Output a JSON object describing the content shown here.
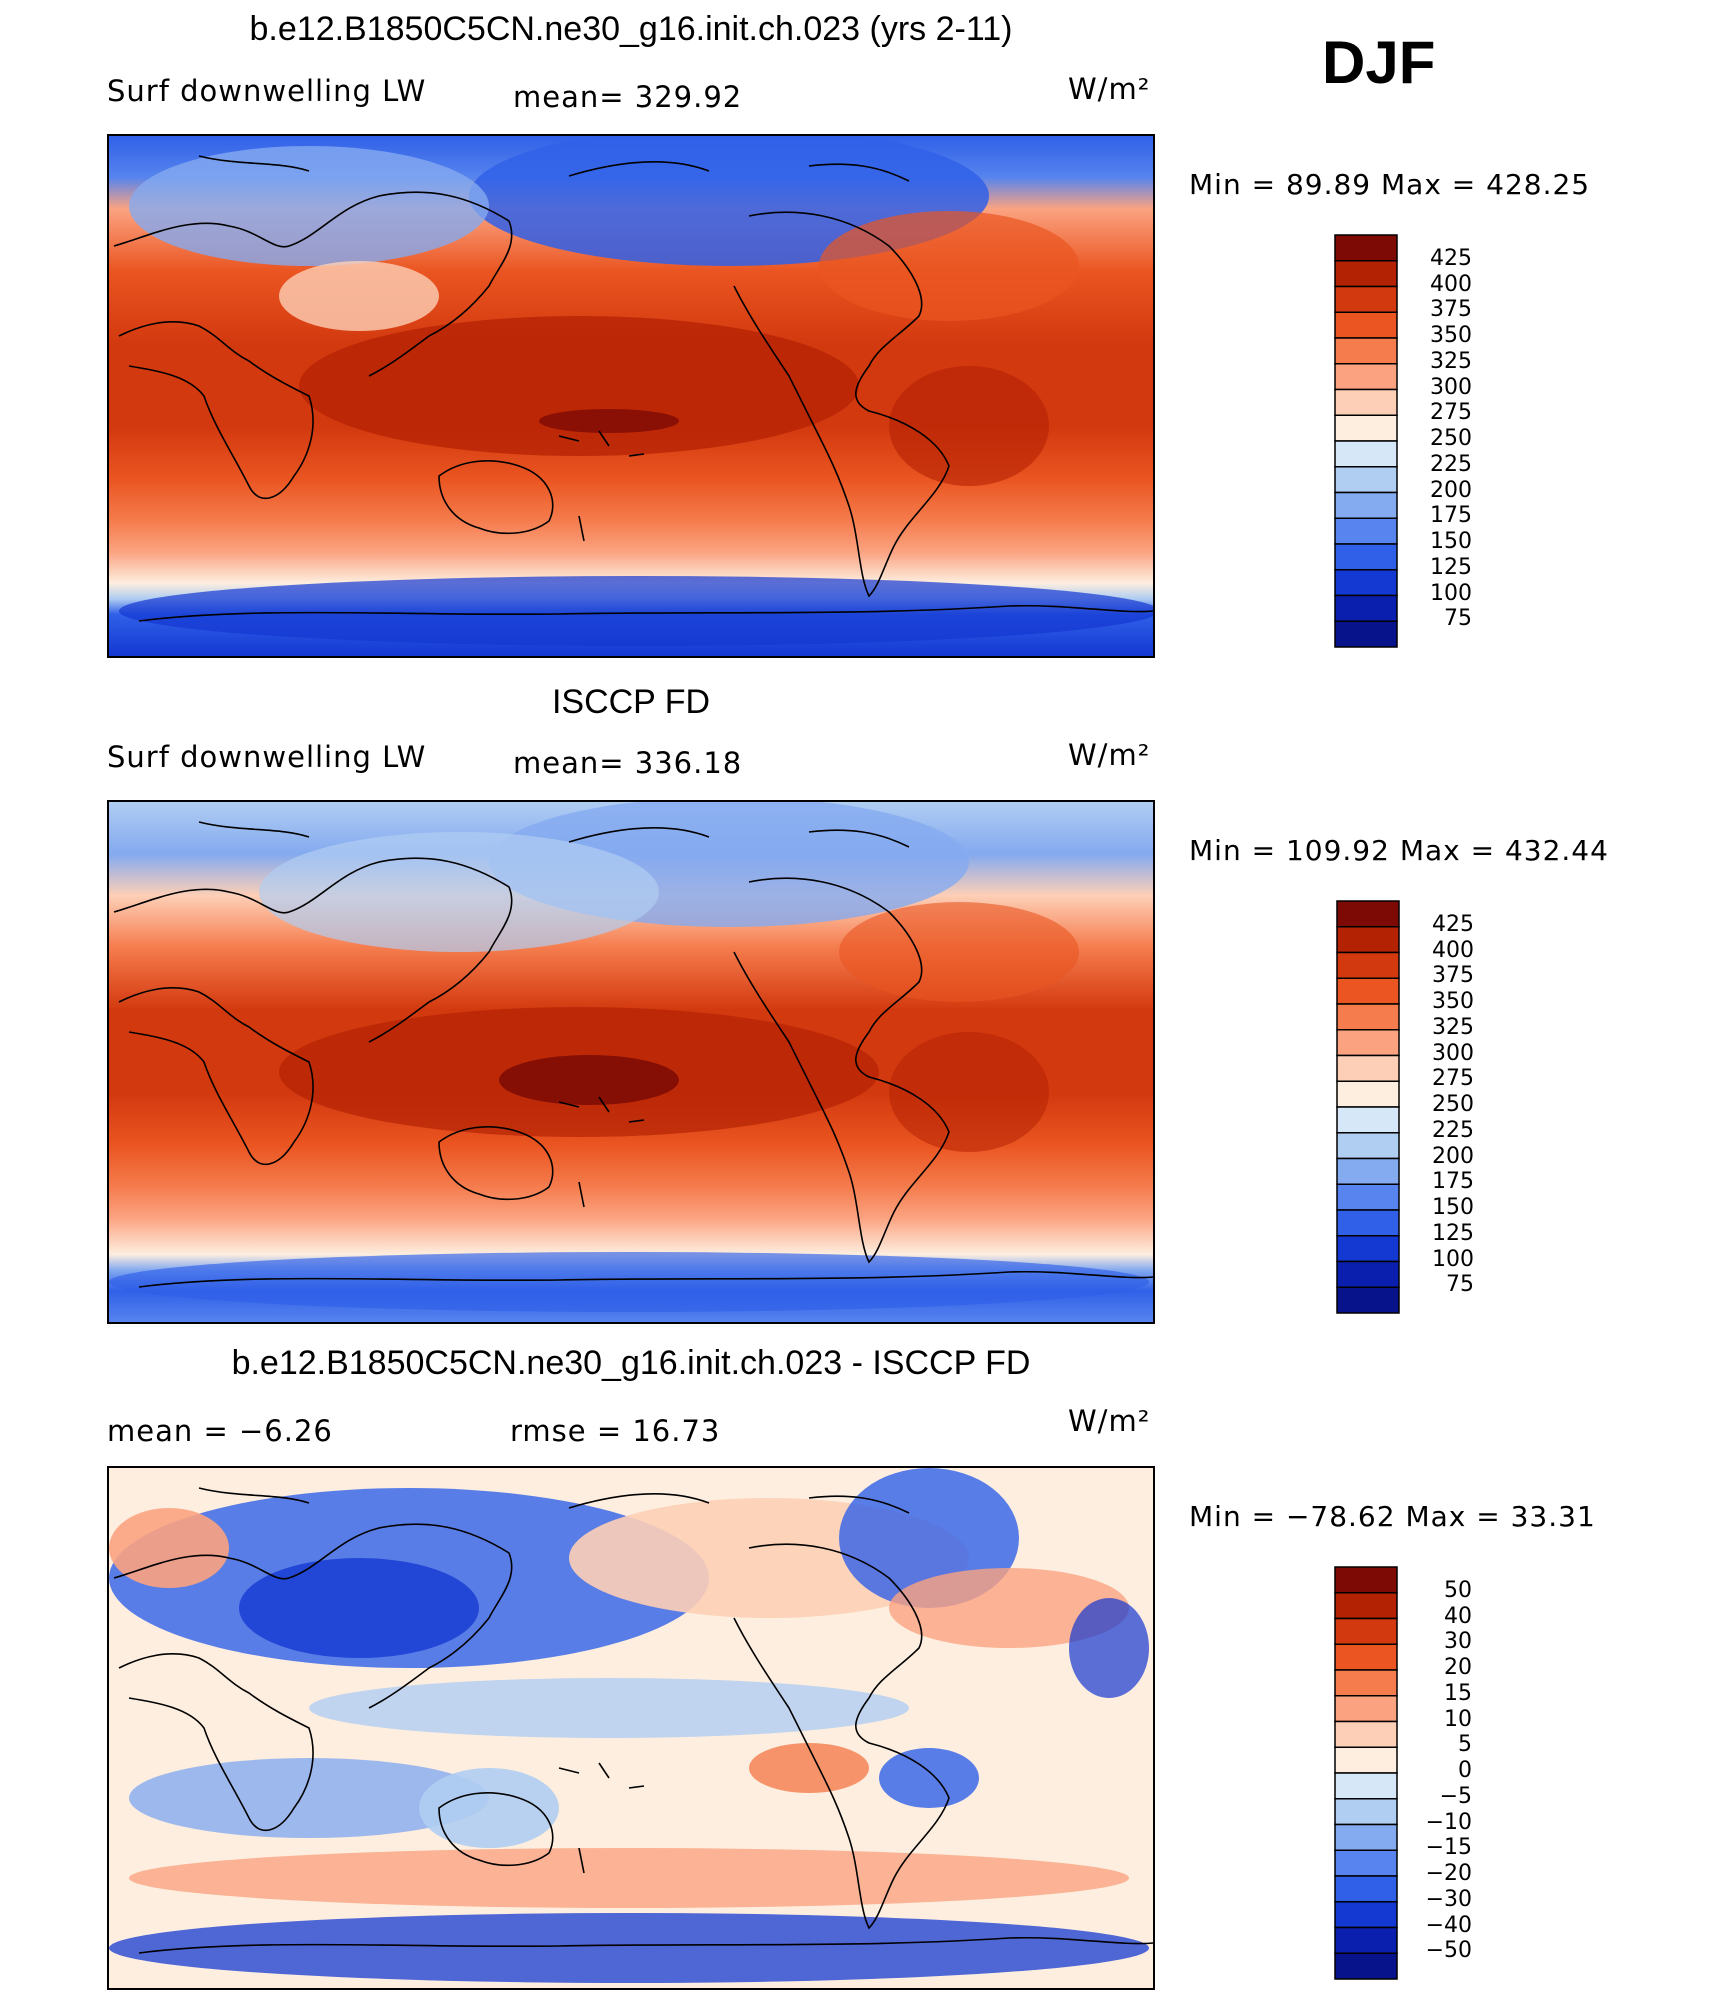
{
  "season": "DJF",
  "chart_data": [
    {
      "type": "heatmap",
      "title": "b.e12.B1850C5CN.ne30_g16.init.ch.023 (yrs 2-11)",
      "left_label": "Surf downwelling LW",
      "center_label": "mean=  329.92",
      "units": "W/m²",
      "minmax": "Min =   89.89  Max  =  428.25",
      "mean": 329.92,
      "min": 89.89,
      "max": 428.25,
      "colorbar": {
        "levels": [
          "425",
          "400",
          "375",
          "350",
          "325",
          "300",
          "275",
          "250",
          "225",
          "200",
          "175",
          "150",
          "125",
          "100",
          "75"
        ],
        "colors": [
          "#7d0a05",
          "#b42204",
          "#d3390f",
          "#ea5521",
          "#f57c4d",
          "#fba381",
          "#fdcfb6",
          "#fdeedf",
          "#d6e8f7",
          "#b0cdf2",
          "#84aaf0",
          "#5784ee",
          "#3060e8",
          "#1438d2",
          "#0b1fae",
          "#06138a"
        ]
      }
    },
    {
      "type": "heatmap",
      "title": "ISCCP FD",
      "left_label": "Surf downwelling LW",
      "center_label": "mean=  336.18",
      "units": "W/m²",
      "minmax": "Min  =  109.92  Max  =  432.44",
      "mean": 336.18,
      "min": 109.92,
      "max": 432.44,
      "colorbar": {
        "levels": [
          "425",
          "400",
          "375",
          "350",
          "325",
          "300",
          "275",
          "250",
          "225",
          "200",
          "175",
          "150",
          "125",
          "100",
          "75"
        ],
        "colors": [
          "#7d0a05",
          "#b42204",
          "#d3390f",
          "#ea5521",
          "#f57c4d",
          "#fba381",
          "#fdcfb6",
          "#fdeedf",
          "#d6e8f7",
          "#b0cdf2",
          "#84aaf0",
          "#5784ee",
          "#3060e8",
          "#1438d2",
          "#0b1fae",
          "#06138a"
        ]
      }
    },
    {
      "type": "heatmap",
      "title": "b.e12.B1850C5CN.ne30_g16.init.ch.023 - ISCCP FD",
      "left_label": "mean  =    −6.26",
      "center_label": "rmse  =    16.73",
      "units": "W/m²",
      "minmax": "Min  =  −78.62  Max  =     33.31",
      "mean": -6.26,
      "rmse": 16.73,
      "min": -78.62,
      "max": 33.31,
      "colorbar": {
        "levels": [
          "50",
          "40",
          "30",
          "20",
          "15",
          "10",
          "5",
          "0",
          "−5",
          "−10",
          "−15",
          "−20",
          "−30",
          "−40",
          "−50"
        ],
        "colors": [
          "#7d0a05",
          "#b42204",
          "#d3390f",
          "#ea5521",
          "#f57c4d",
          "#fba381",
          "#fdcfb6",
          "#fdeedf",
          "#d6e8f7",
          "#b0cdf2",
          "#84aaf0",
          "#5784ee",
          "#3060e8",
          "#1438d2",
          "#0b1fae",
          "#06138a"
        ]
      }
    }
  ]
}
